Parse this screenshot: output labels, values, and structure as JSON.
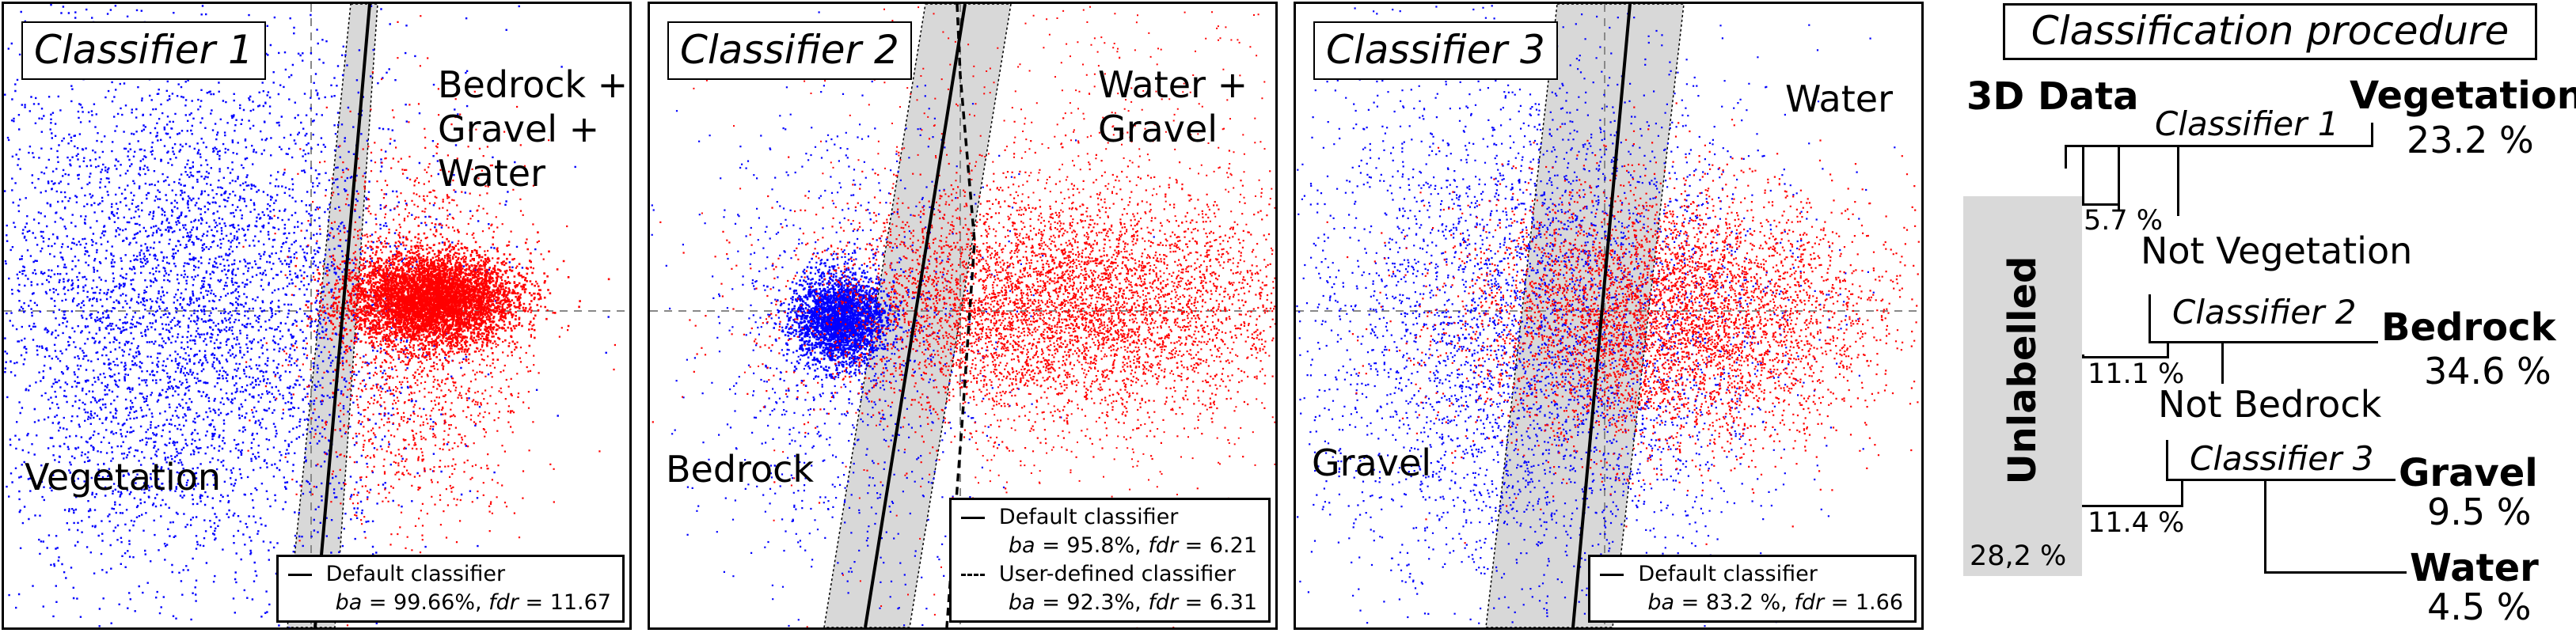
{
  "colors": {
    "vegetation_points": "#0000ff",
    "other_points": "#ff0000",
    "band": "#d8d8d8",
    "unlabelled_box": "#d9d9d9"
  },
  "panels": [
    {
      "title": "Classifier 1",
      "left_label": "Vegetation",
      "right_label": "Bedrock +\nGravel +\nWater",
      "legend": [
        {
          "style": "solid",
          "name": "Default classifier",
          "metrics": {
            "ba_label": "ba",
            "ba_value": " = 99.66%, ",
            "fdr_label": "fdr",
            "fdr_value": " = 11.67"
          }
        }
      ]
    },
    {
      "title": "Classifier 2",
      "left_label": "Bedrock",
      "right_label": "Water +\nGravel",
      "legend": [
        {
          "style": "solid",
          "name": "Default classifier",
          "metrics": {
            "ba_label": "ba",
            "ba_value": " = 95.8%, ",
            "fdr_label": "fdr",
            "fdr_value": " = 6.21"
          }
        },
        {
          "style": "dashed",
          "name": "User-defined classifier",
          "metrics": {
            "ba_label": "ba",
            "ba_value": " = 92.3%, ",
            "fdr_label": "fdr",
            "fdr_value": " = 6.31"
          }
        }
      ]
    },
    {
      "title": "Classifier 3",
      "left_label": "Gravel",
      "right_label": "Water",
      "legend": [
        {
          "style": "solid",
          "name": "Default classifier",
          "metrics": {
            "ba_label": "ba",
            "ba_value": " = 83.2 %, ",
            "fdr_label": "fdr",
            "fdr_value": " = 1.66"
          }
        }
      ]
    }
  ],
  "procedure": {
    "title": "Classification procedure",
    "root": "3D Data",
    "unlabelled": {
      "label": "Unlabelled",
      "total": "28,2 %"
    },
    "steps": [
      {
        "classifier": "Classifier 1",
        "class": "Vegetation",
        "class_pct": "23.2 %",
        "unlabelled_pct": "5.7 %",
        "remainder": "Not Vegetation"
      },
      {
        "classifier": "Classifier 2",
        "class": "Bedrock",
        "class_pct": "34.6 %",
        "unlabelled_pct": "11.1 %",
        "remainder": "Not Bedrock"
      },
      {
        "classifier": "Classifier 3",
        "class": "Gravel",
        "class_pct": "9.5 %",
        "unlabelled_pct": "11.4 %",
        "remainder": ""
      }
    ],
    "final_class": {
      "class": "Water",
      "pct": "4.5 %"
    }
  }
}
